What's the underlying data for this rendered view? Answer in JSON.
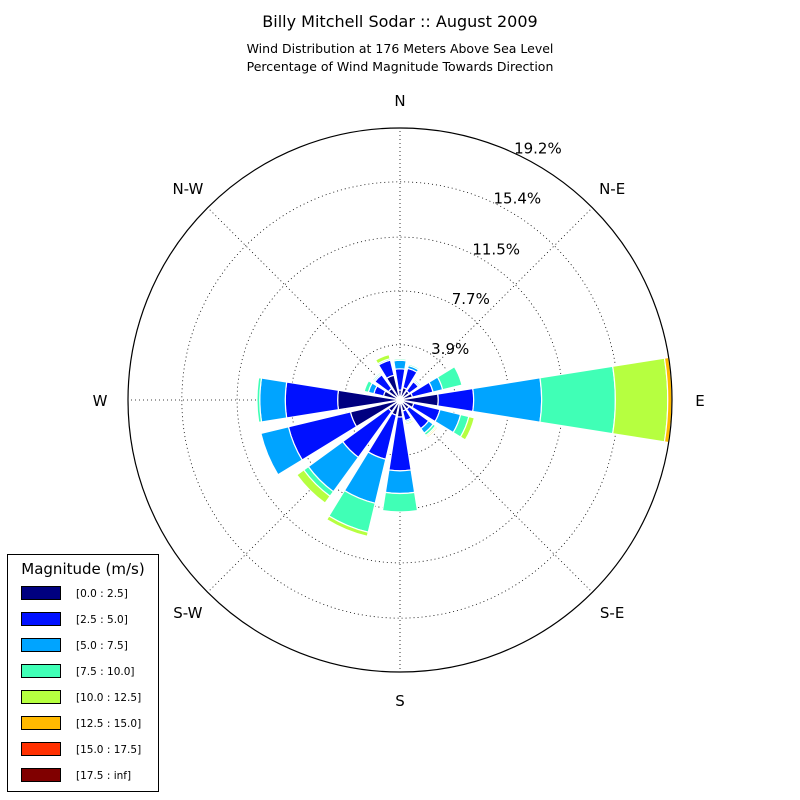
{
  "header": {
    "title": "Billy Mitchell Sodar :: August 2009",
    "subtitle_line1": "Wind Distribution at 176 Meters Above Sea Level",
    "subtitle_line2": "Percentage of Wind Magnitude Towards Direction"
  },
  "legend": {
    "title": "Magnitude (m/s)",
    "items": [
      {
        "label": "[0.0 : 2.5]",
        "color": "#000080"
      },
      {
        "label": "[2.5 : 5.0]",
        "color": "#0010ff"
      },
      {
        "label": "[5.0 : 7.5]",
        "color": "#00a4ff"
      },
      {
        "label": "[7.5 : 10.0]",
        "color": "#40ffb6"
      },
      {
        "label": "[10.0 : 12.5]",
        "color": "#b6ff40"
      },
      {
        "label": "[12.5 : 15.0]",
        "color": "#ffb900"
      },
      {
        "label": "[15.0 : 17.5]",
        "color": "#ff3000"
      },
      {
        "label": "[17.5 : inf]",
        "color": "#800000"
      }
    ]
  },
  "chart_data": {
    "type": "windrose",
    "direction_labels": [
      {
        "label": "N",
        "angle": 0
      },
      {
        "label": "N-E",
        "angle": 45
      },
      {
        "label": "E",
        "angle": 90
      },
      {
        "label": "S-E",
        "angle": 135
      },
      {
        "label": "S",
        "angle": 180
      },
      {
        "label": "S-W",
        "angle": 225
      },
      {
        "label": "W",
        "angle": 270
      },
      {
        "label": "N-W",
        "angle": 315
      }
    ],
    "radial_ticks": [
      {
        "value": 3.9,
        "label": "3.9%"
      },
      {
        "value": 7.7,
        "label": "7.7%"
      },
      {
        "value": 11.5,
        "label": "11.5%"
      },
      {
        "value": 15.4,
        "label": "15.4%"
      },
      {
        "value": 19.2,
        "label": "19.2%"
      }
    ],
    "rmax": 19.2,
    "bin_width_deg": 22.5,
    "bars": [
      {
        "direction": 0,
        "cumulative": [
          0.7,
          2.2,
          2.8,
          2.9,
          2.9,
          2.9,
          2.9,
          2.9
        ]
      },
      {
        "direction": 22.5,
        "cumulative": [
          0.9,
          2.3,
          2.5,
          2.6,
          2.6,
          2.6,
          2.6,
          2.6
        ]
      },
      {
        "direction": 45,
        "cumulative": [
          0.8,
          1.6,
          1.7,
          1.8,
          1.8,
          1.8,
          1.8,
          1.8
        ]
      },
      {
        "direction": 67.5,
        "cumulative": [
          0.9,
          2.4,
          3.1,
          4.5,
          4.5,
          4.5,
          4.5,
          4.5
        ]
      },
      {
        "direction": 90,
        "cumulative": [
          2.7,
          5.2,
          10.0,
          15.2,
          18.9,
          19.2,
          19.2,
          19.2
        ]
      },
      {
        "direction": 112.5,
        "cumulative": [
          1.0,
          2.9,
          4.4,
          5.0,
          5.4,
          5.4,
          5.4,
          5.4
        ]
      },
      {
        "direction": 135,
        "cumulative": [
          0.8,
          2.5,
          2.9,
          3.1,
          3.2,
          3.3,
          3.35,
          3.35
        ]
      },
      {
        "direction": 157.5,
        "cumulative": [
          0.8,
          1.5,
          1.6,
          1.7,
          1.8,
          1.8,
          1.8,
          1.8
        ]
      },
      {
        "direction": 180,
        "cumulative": [
          1.2,
          5.0,
          6.6,
          7.9,
          7.9,
          7.9,
          7.9,
          7.9
        ]
      },
      {
        "direction": 202.5,
        "cumulative": [
          1.1,
          4.3,
          7.5,
          9.6,
          9.9,
          9.9,
          9.9,
          9.9
        ]
      },
      {
        "direction": 225,
        "cumulative": [
          1.0,
          5.0,
          8.0,
          8.4,
          9.0,
          9.0,
          9.0,
          9.0
        ]
      },
      {
        "direction": 247.5,
        "cumulative": [
          3.6,
          8.1,
          10.1,
          10.1,
          10.1,
          10.1,
          10.1,
          10.1
        ]
      },
      {
        "direction": 270,
        "cumulative": [
          4.4,
          8.1,
          9.9,
          10.1,
          10.1,
          10.1,
          10.1,
          10.1
        ]
      },
      {
        "direction": 292.5,
        "cumulative": [
          1.2,
          1.9,
          2.3,
          2.6,
          2.6,
          2.6,
          2.6,
          2.6
        ]
      },
      {
        "direction": 315,
        "cumulative": [
          1.0,
          2.2,
          2.3,
          2.4,
          2.4,
          2.4,
          2.4,
          2.4
        ]
      },
      {
        "direction": 337.5,
        "cumulative": [
          1.8,
          2.9,
          3.0,
          3.0,
          3.3,
          3.3,
          3.3,
          3.3
        ]
      }
    ]
  }
}
